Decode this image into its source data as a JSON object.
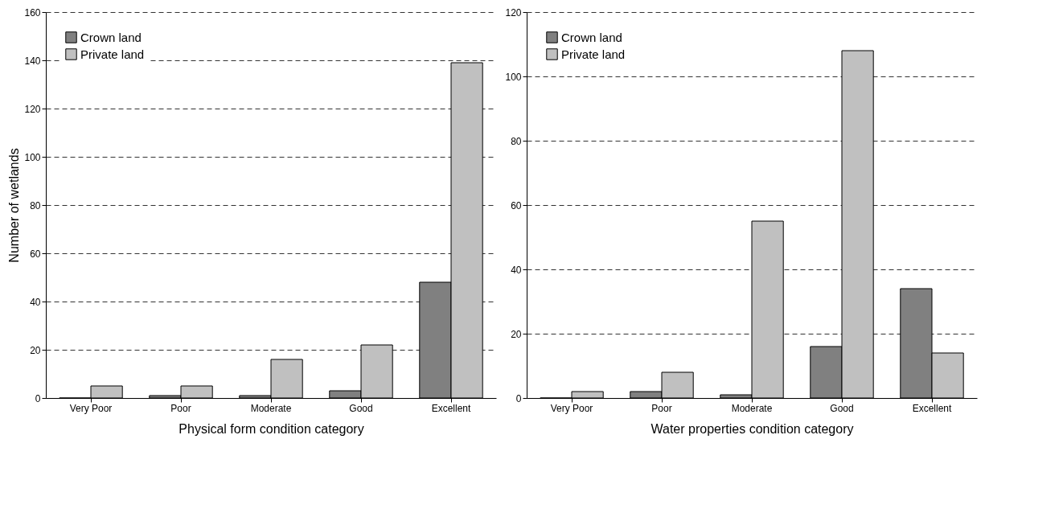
{
  "chart_data": [
    {
      "type": "bar",
      "xlabel": "Physical form condition category",
      "ylabel": "Number of wetlands",
      "categories": [
        "Very Poor",
        "Poor",
        "Moderate",
        "Good",
        "Excellent"
      ],
      "series": [
        {
          "name": "Crown land",
          "color": "#808080",
          "values": [
            0,
            1,
            1,
            3,
            48
          ]
        },
        {
          "name": "Private land",
          "color": "#c0c0c0",
          "values": [
            5,
            5,
            16,
            22,
            139
          ]
        }
      ],
      "ylim": [
        0,
        160
      ],
      "yticks": [
        0,
        20,
        40,
        60,
        80,
        100,
        120,
        140,
        160
      ],
      "grid": "y",
      "legend": "top left"
    },
    {
      "type": "bar",
      "xlabel": "Water properties condition category",
      "categories": [
        "Very Poor",
        "Poor",
        "Moderate",
        "Good",
        "Excellent"
      ],
      "series": [
        {
          "name": "Crown land",
          "color": "#808080",
          "values": [
            0,
            2,
            1,
            16,
            34
          ]
        },
        {
          "name": "Private land",
          "color": "#c0c0c0",
          "values": [
            2,
            8,
            55,
            108,
            14
          ]
        }
      ],
      "ylim": [
        0,
        120
      ],
      "yticks": [
        0,
        20,
        40,
        60,
        80,
        100,
        120
      ],
      "grid": "y",
      "legend": "top left"
    }
  ]
}
